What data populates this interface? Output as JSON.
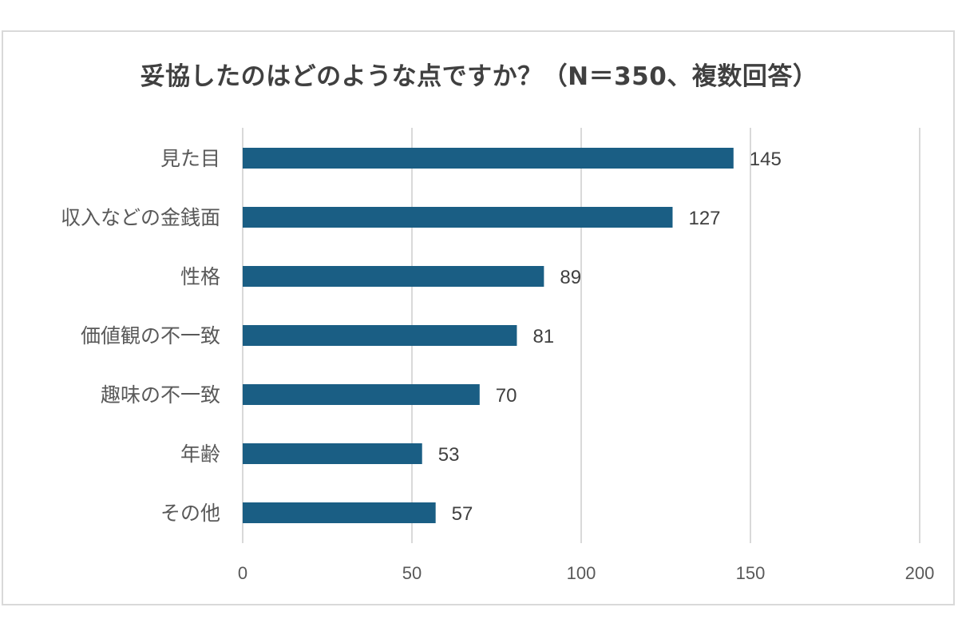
{
  "chart_data": {
    "type": "bar",
    "orientation": "horizontal",
    "title": "妥協したのはどのような点ですか？（N＝350、複数回答）",
    "categories": [
      "見た目",
      "収入などの金銭面",
      "性格",
      "価値観の不一致",
      "趣味の不一致",
      "年齢",
      "その他"
    ],
    "values": [
      145,
      127,
      89,
      81,
      70,
      53,
      57
    ],
    "xlim": [
      0,
      200
    ],
    "xticks": [
      0,
      50,
      100,
      150,
      200
    ],
    "grid": true,
    "legend": "none",
    "bar_color": "#1a5e84",
    "grid_color": "#d9d9d9",
    "text_color": "#595959"
  }
}
